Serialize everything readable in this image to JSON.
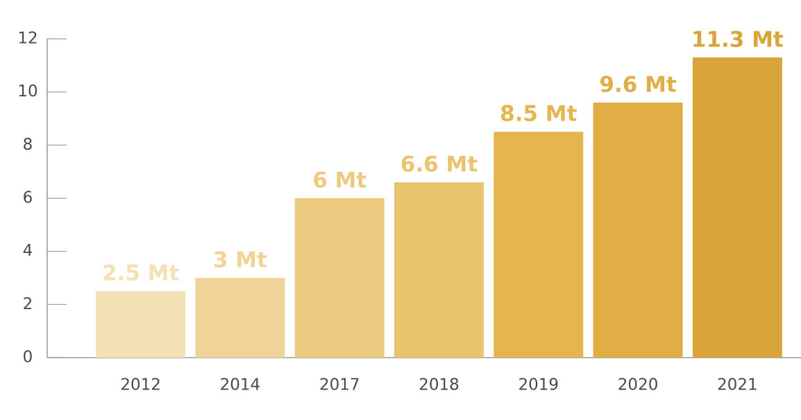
{
  "chart_data": {
    "type": "bar",
    "categories": [
      "2012",
      "2014",
      "2017",
      "2018",
      "2019",
      "2020",
      "2021"
    ],
    "values": [
      2.5,
      3,
      6,
      6.6,
      8.5,
      9.6,
      11.3
    ],
    "value_labels": [
      "2.5 Mt",
      "3 Mt",
      "6 Mt",
      "6.6 Mt",
      "8.5 Mt",
      "9.6 Mt",
      "11.3 Mt"
    ],
    "colors": [
      "#f4e1b4",
      "#efd397",
      "#ecca80",
      "#e9c36e",
      "#e5b64f",
      "#e1ae45",
      "#d9a53b"
    ],
    "ylim": [
      0,
      12
    ],
    "yticks": [
      0,
      2,
      4,
      6,
      8,
      10,
      12
    ],
    "grid": false
  }
}
